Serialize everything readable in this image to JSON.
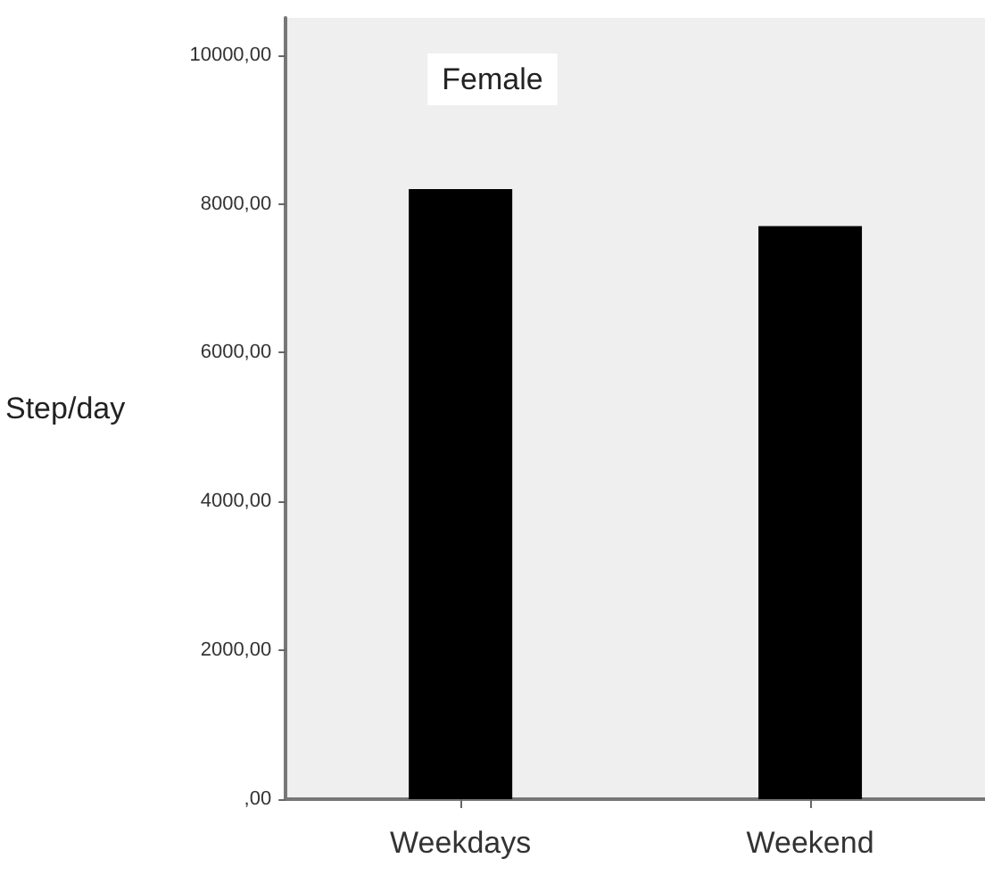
{
  "chart_data": {
    "type": "bar",
    "title": "Female",
    "ylabel": "Step/day",
    "categories": [
      "Weekdays",
      "Weekend"
    ],
    "values": [
      8200,
      7700
    ],
    "color": "#000000",
    "ylim": [
      0,
      10500
    ],
    "yticks": [
      {
        "value": 0,
        "label": ",00"
      },
      {
        "value": 2000,
        "label": "2000,00"
      },
      {
        "value": 4000,
        "label": "4000,00"
      },
      {
        "value": 6000,
        "label": "6000,00"
      },
      {
        "value": 8000,
        "label": "8000,00"
      },
      {
        "value": 10000,
        "label": "10000,00"
      }
    ],
    "grid": false
  }
}
